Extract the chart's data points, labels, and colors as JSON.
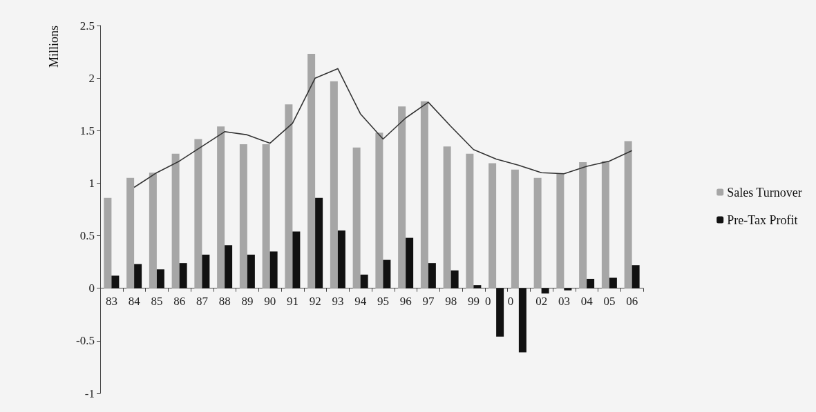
{
  "chart_data": {
    "type": "bar",
    "ylabel": "Millions",
    "categories": [
      "83",
      "84",
      "85",
      "86",
      "87",
      "88",
      "89",
      "90",
      "91",
      "92",
      "93",
      "94",
      "95",
      "96",
      "97",
      "98",
      "99",
      "0",
      "0",
      "02",
      "03",
      "04",
      "05",
      "06"
    ],
    "series": [
      {
        "name": "Sales Turnover",
        "color": "#a6a6a6",
        "values": [
          0.86,
          1.05,
          1.1,
          1.28,
          1.42,
          1.54,
          1.37,
          1.37,
          1.75,
          2.23,
          1.97,
          1.34,
          1.48,
          1.73,
          1.78,
          1.35,
          1.28,
          1.19,
          1.13,
          1.05,
          1.09,
          1.2,
          1.21,
          1.4
        ]
      },
      {
        "name": "Pre-Tax Profit",
        "color": "#111111",
        "values": [
          0.12,
          0.23,
          0.18,
          0.24,
          0.32,
          0.41,
          0.32,
          0.35,
          0.54,
          0.86,
          0.55,
          0.13,
          0.27,
          0.48,
          0.24,
          0.17,
          0.03,
          -0.46,
          -0.61,
          -0.05,
          -0.02,
          0.09,
          0.1,
          0.22
        ]
      },
      {
        "type": "line",
        "color": "#333333",
        "values": [
          null,
          0.96,
          1.1,
          1.21,
          1.35,
          1.49,
          1.46,
          1.38,
          1.57,
          2.0,
          2.09,
          1.66,
          1.42,
          1.62,
          1.77,
          1.54,
          1.32,
          1.23,
          1.17,
          1.1,
          1.09,
          1.16,
          1.21,
          1.31
        ]
      }
    ],
    "ylim": [
      -1,
      2.5
    ],
    "yticks": [
      -1,
      -0.5,
      0,
      0.5,
      1,
      1.5,
      2,
      2.5
    ],
    "legend": "right",
    "marker": "none"
  }
}
